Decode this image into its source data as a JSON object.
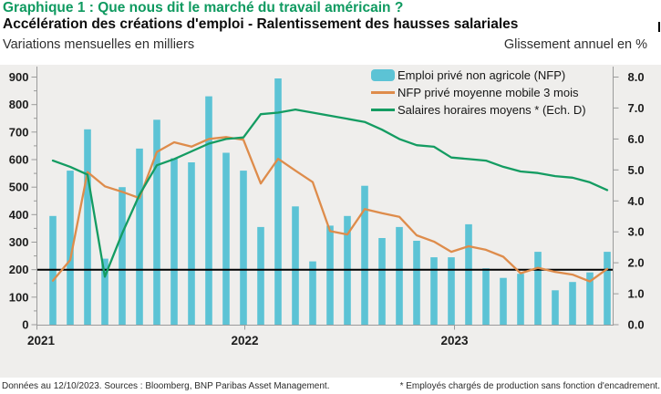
{
  "header": {
    "title": "Graphique 1 : Que nous dit le marché du travail américain ?",
    "subtitle": "Accélération des créations d'emploi - Ralentissement des hausses salariales",
    "left_axis_caption": "Variations mensuelles en milliers",
    "right_axis_caption": "Glissement annuel en %"
  },
  "footer": {
    "left": "Données au 12/10/2023. Sources : Bloomberg, BNP Paribas Asset Management.",
    "right": "* Employés chargés de production sans fonction d'encadrement."
  },
  "colors": {
    "title_green": "#0f9a60",
    "bar": "#5cc3d5",
    "ma_line": "#de8c4b",
    "wage_line": "#149c62",
    "reference_line": "#000000",
    "plot_background": "#efeeec",
    "axis": "#9b9b9b"
  },
  "chart_data": {
    "type": "bar",
    "categories": [
      "2021-01",
      "2021-02",
      "2021-03",
      "2021-04",
      "2021-05",
      "2021-06",
      "2021-07",
      "2021-08",
      "2021-09",
      "2021-10",
      "2021-11",
      "2021-12",
      "2022-01",
      "2022-02",
      "2022-03",
      "2022-04",
      "2022-05",
      "2022-06",
      "2022-07",
      "2022-08",
      "2022-09",
      "2022-10",
      "2022-11",
      "2022-12",
      "2023-01",
      "2023-02",
      "2023-03",
      "2023-04",
      "2023-05",
      "2023-06",
      "2023-07",
      "2023-08",
      "2023-09"
    ],
    "year_ticks": [
      "2021",
      "2022",
      "2023"
    ],
    "series": [
      {
        "name": "Emploi privé non agricole (NFP)",
        "type": "bar",
        "axis": "left",
        "values": [
          395,
          560,
          710,
          240,
          500,
          640,
          745,
          605,
          590,
          830,
          625,
          560,
          355,
          895,
          430,
          230,
          360,
          395,
          505,
          315,
          355,
          305,
          245,
          245,
          365,
          205,
          170,
          185,
          265,
          125,
          155,
          190,
          265
        ]
      },
      {
        "name": "NFP privé moyenne mobile 3 mois",
        "type": "line",
        "axis": "left",
        "values": [
          160,
          235,
          555,
          503,
          483,
          460,
          628,
          663,
          647,
          675,
          682,
          672,
          513,
          603,
          560,
          518,
          340,
          328,
          420,
          405,
          392,
          325,
          302,
          265,
          285,
          272,
          247,
          187,
          207,
          192,
          182,
          157,
          203
        ]
      },
      {
        "name": "Salaires horaires moyens * (Ech. D)",
        "type": "line",
        "axis": "right",
        "values": [
          5.3,
          5.1,
          4.85,
          1.55,
          2.95,
          4.2,
          5.15,
          5.35,
          5.6,
          5.85,
          6.0,
          6.05,
          6.8,
          6.85,
          6.95,
          6.85,
          6.75,
          6.65,
          6.55,
          6.3,
          6.0,
          5.8,
          5.75,
          5.4,
          5.35,
          5.3,
          5.1,
          4.95,
          4.9,
          4.8,
          4.75,
          4.6,
          4.35
        ]
      }
    ],
    "left_axis": {
      "min": 0,
      "max": 900,
      "step": 100,
      "minor_step": 50
    },
    "right_axis": {
      "min": 0,
      "max": 8,
      "step": 1,
      "decimals": 1
    },
    "reference_line_left": 200,
    "legend_position": "top-right-inside",
    "grid": false
  }
}
